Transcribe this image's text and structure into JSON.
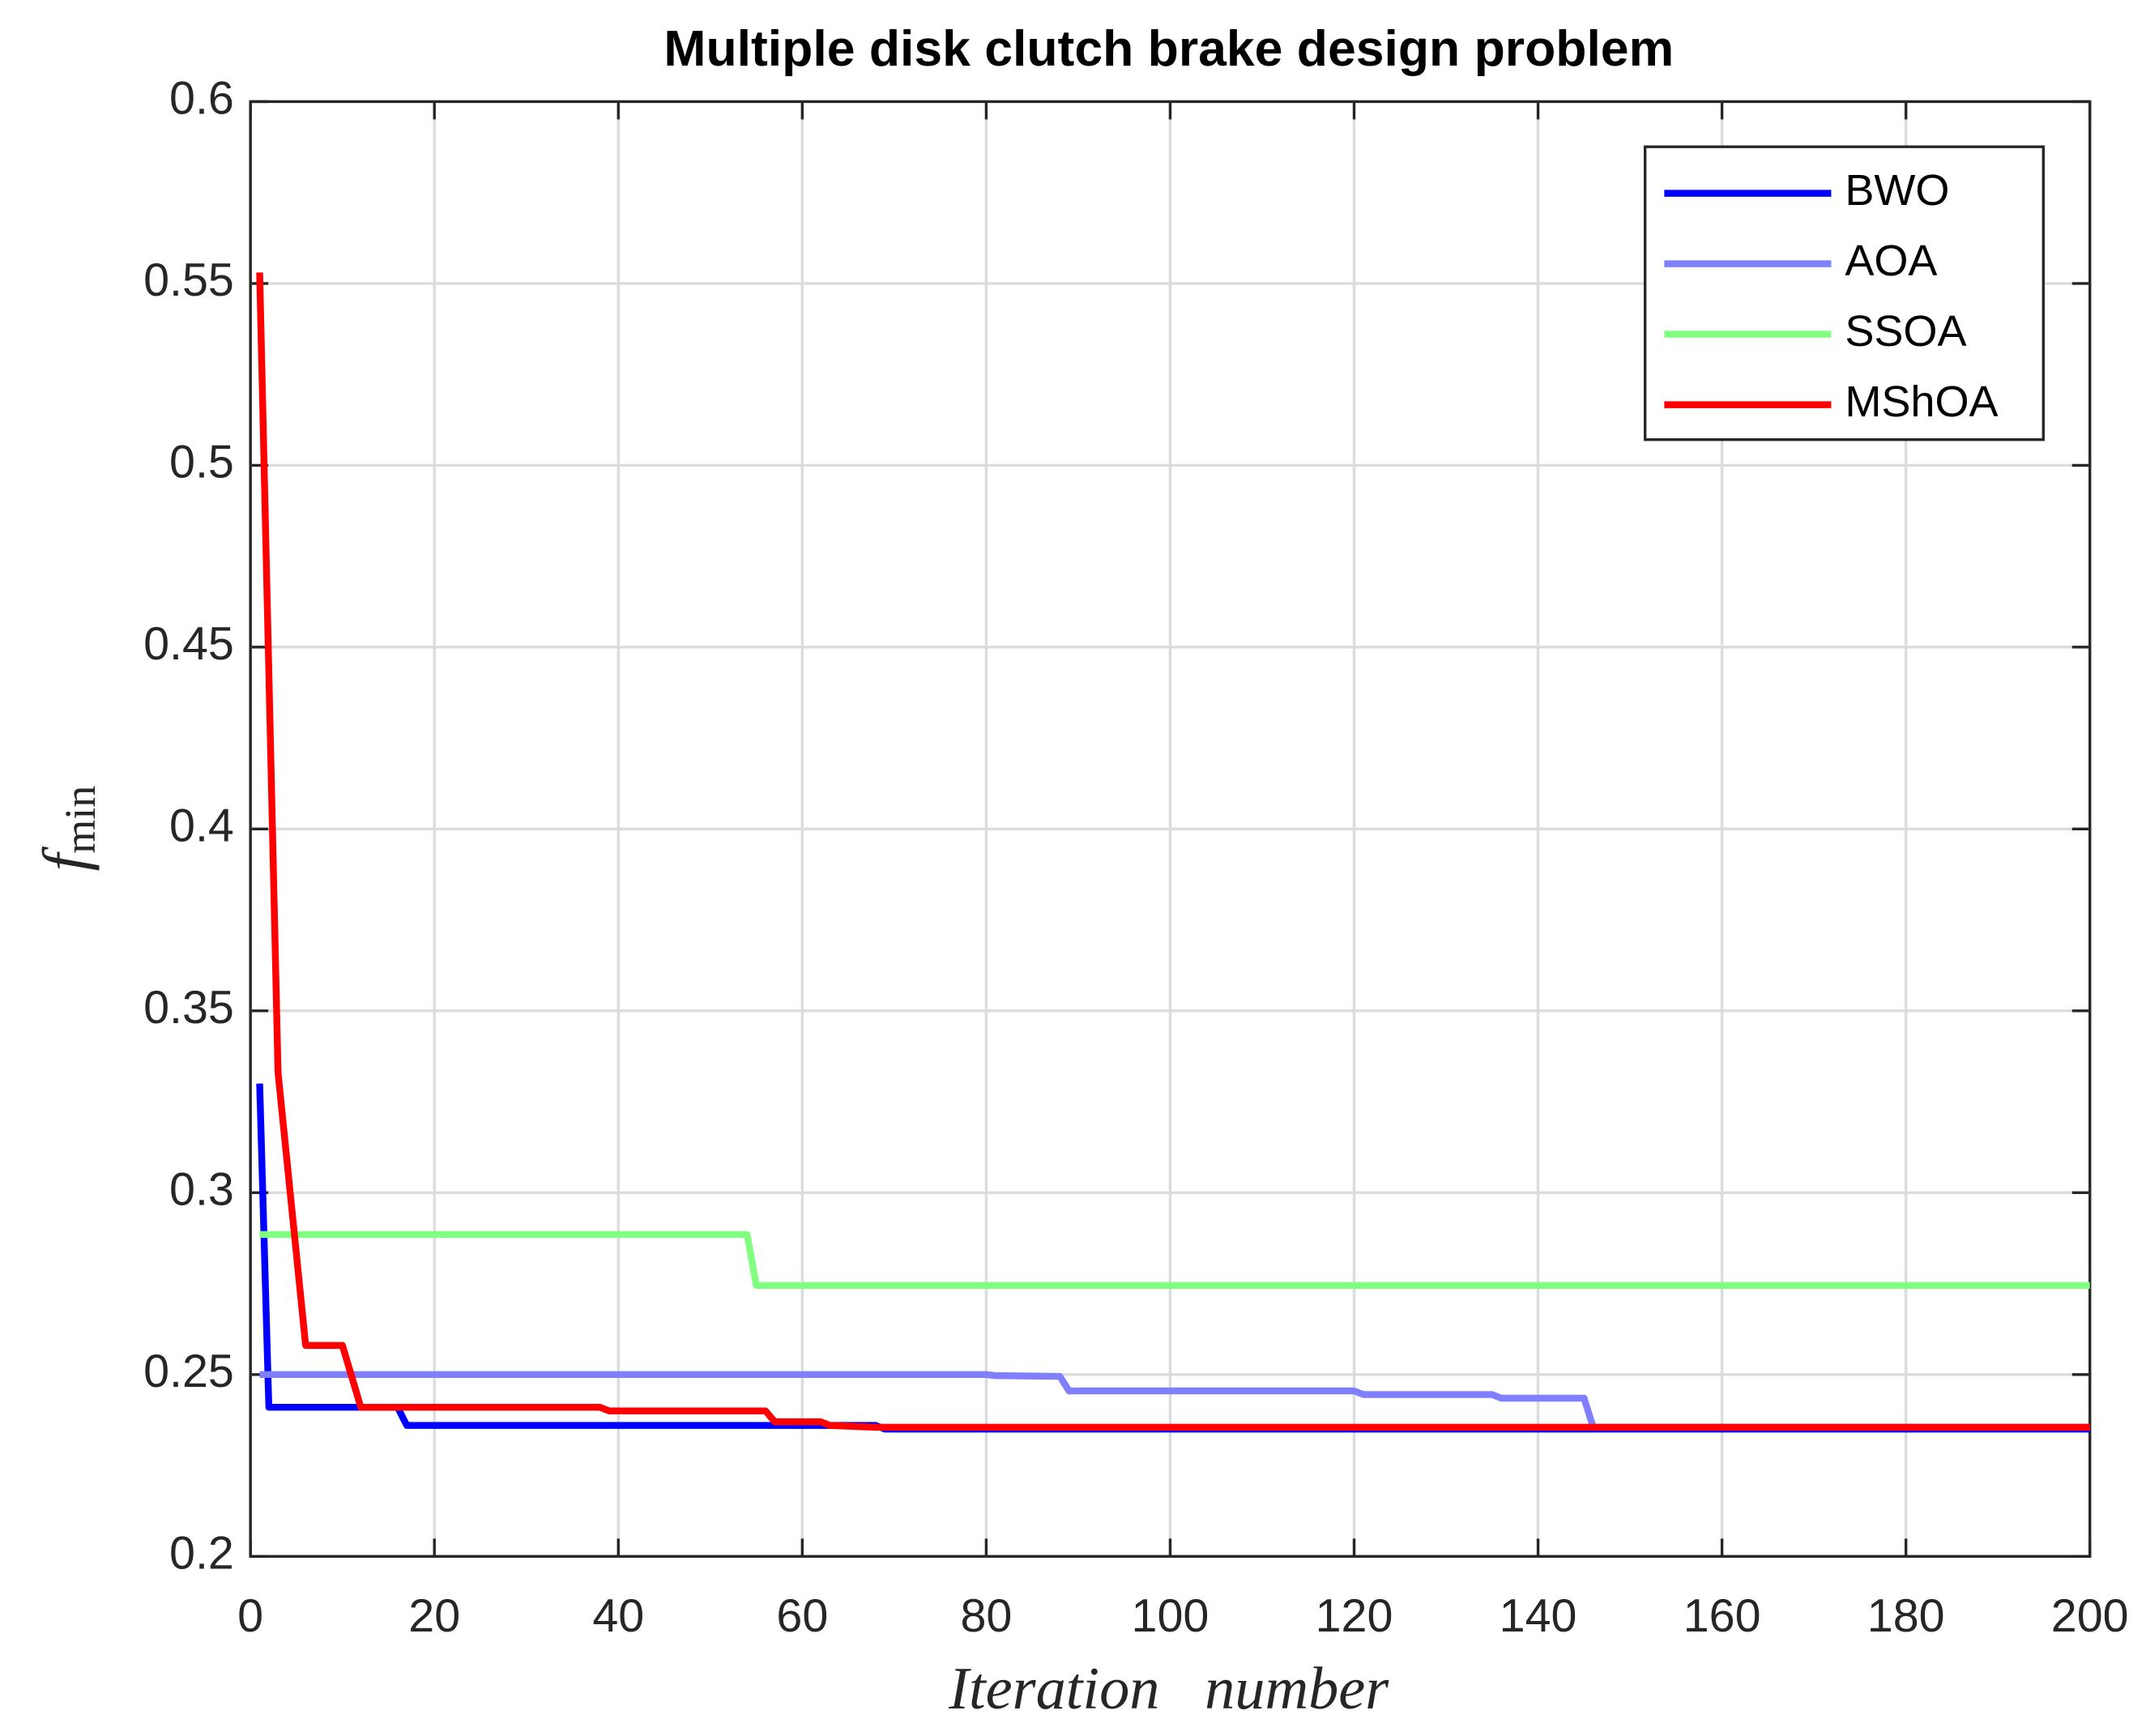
{
  "chart_data": {
    "type": "line",
    "title": "Multiple disk clutch brake design problem",
    "x_label": "Iteration   number",
    "y_label": "f",
    "y_label_subscript": "min",
    "xlim": [
      0,
      200
    ],
    "xticks": [
      0,
      20,
      40,
      60,
      80,
      100,
      120,
      140,
      160,
      180,
      200
    ],
    "ylim": [
      0.2,
      0.6
    ],
    "yticks": [
      0.2,
      0.25,
      0.3,
      0.35,
      0.4,
      0.45,
      0.5,
      0.55,
      0.6
    ],
    "grid": true,
    "legend": "top-right",
    "series": [
      {
        "name": "BWO",
        "color": "#0000ff",
        "x": [
          1,
          2,
          16,
          17,
          68,
          69,
          200
        ],
        "values": [
          0.33,
          0.241,
          0.241,
          0.236,
          0.236,
          0.235,
          0.235
        ]
      },
      {
        "name": "AOA",
        "color": "#8080ff",
        "x": [
          1,
          80,
          81,
          88,
          89,
          120,
          121,
          135,
          136,
          145,
          146,
          200
        ],
        "values": [
          0.25,
          0.25,
          0.2497,
          0.2495,
          0.2455,
          0.2455,
          0.2445,
          0.2445,
          0.2435,
          0.2435,
          0.2355,
          0.2355
        ]
      },
      {
        "name": "SSOA",
        "color": "#80ff80",
        "x": [
          1,
          54,
          55,
          200
        ],
        "values": [
          0.2885,
          0.2885,
          0.2745,
          0.2745
        ]
      },
      {
        "name": "MShOA",
        "color": "#ff0000",
        "x": [
          1,
          3,
          6,
          10,
          12,
          38,
          39,
          56,
          57,
          62,
          63,
          68,
          200
        ],
        "values": [
          0.553,
          0.333,
          0.258,
          0.258,
          0.241,
          0.241,
          0.24,
          0.24,
          0.237,
          0.237,
          0.236,
          0.2355,
          0.2355
        ]
      }
    ]
  }
}
